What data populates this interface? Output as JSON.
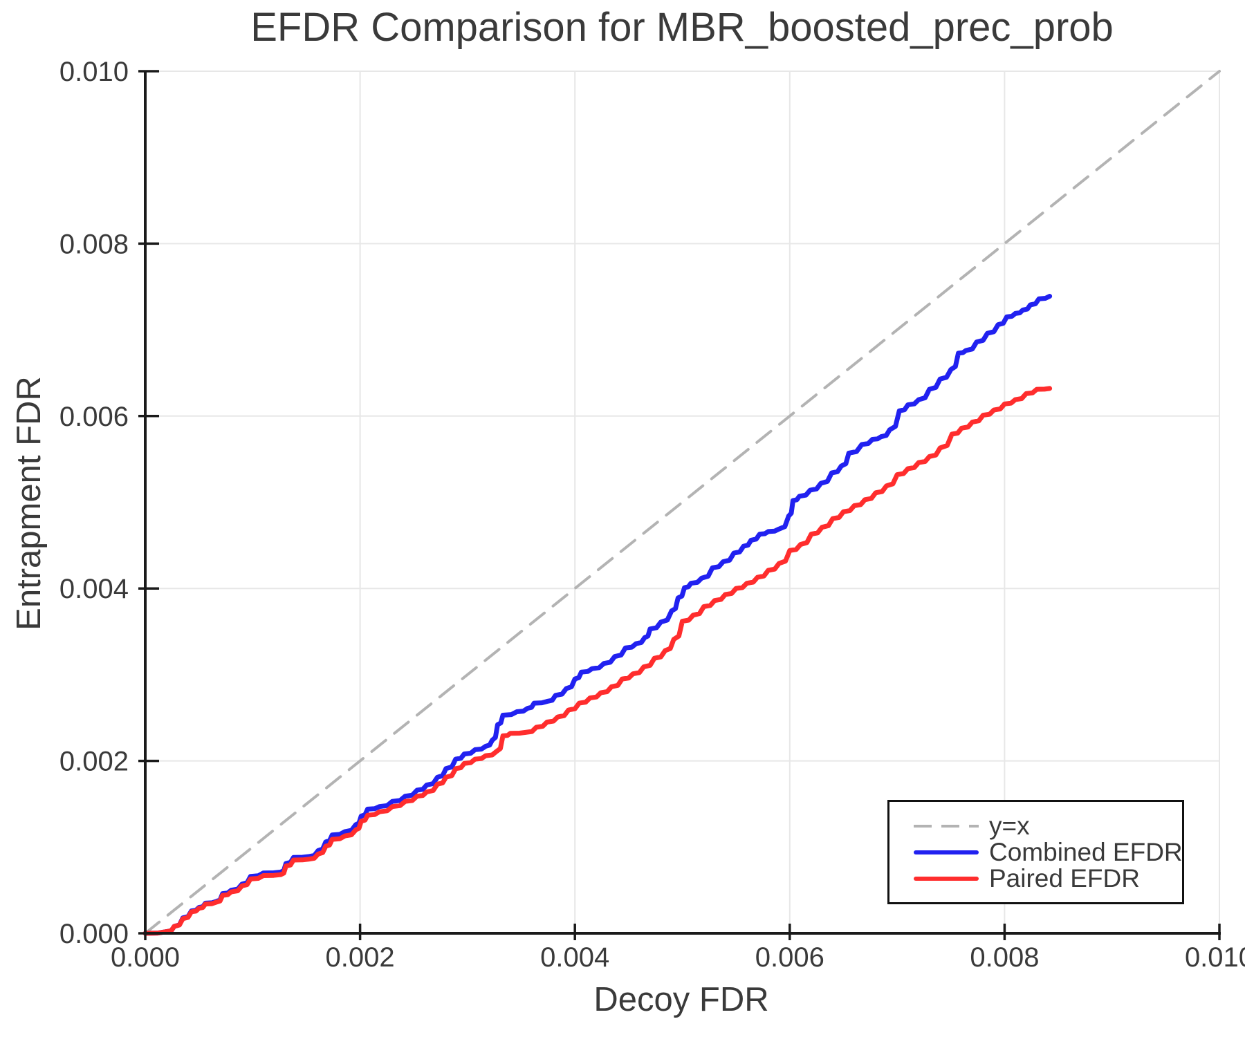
{
  "figure": {
    "title": "EFDR Comparison for MBR_boosted_prec_prob",
    "xlabel": "Decoy FDR",
    "ylabel": "Entrapment FDR"
  },
  "legend": {
    "position": "lower right",
    "items": [
      {
        "label": "y=x",
        "color": "#b3b3b3",
        "style": "dashed"
      },
      {
        "label": "Combined EFDR",
        "color": "#2121f0",
        "style": "solid"
      },
      {
        "label": "Paired EFDR",
        "color": "#ff2d2d",
        "style": "solid"
      }
    ]
  },
  "colors": {
    "identity_line": "#b3b3b3",
    "combined_efdr": "#2121f0",
    "paired_efdr": "#ff2d2d",
    "grid": "#e7e7e7",
    "spine": "#1a1a1a",
    "text": "#3a3a3a"
  },
  "chart_data": {
    "type": "line",
    "title": "EFDR Comparison for MBR_boosted_prec_prob",
    "xlabel": "Decoy FDR",
    "ylabel": "Entrapment FDR",
    "xlim": [
      0.0,
      0.01
    ],
    "ylim": [
      0.0,
      0.01
    ],
    "grid": true,
    "legend_position": "lower right",
    "x_ticks": [
      0.0,
      0.002,
      0.004,
      0.006,
      0.008,
      0.01
    ],
    "y_ticks": [
      0.0,
      0.002,
      0.004,
      0.006,
      0.008,
      0.01
    ],
    "x_tick_labels": [
      "0.000",
      "0.002",
      "0.004",
      "0.006",
      "0.008",
      "0.010"
    ],
    "y_tick_labels": [
      "0.000",
      "0.002",
      "0.004",
      "0.006",
      "0.008",
      "0.010"
    ],
    "series": [
      {
        "name": "y=x",
        "color": "#b3b3b3",
        "style": "dashed",
        "step": false,
        "points": [
          [
            0.0,
            0.0
          ],
          [
            0.01,
            0.01
          ]
        ]
      },
      {
        "name": "Combined EFDR",
        "color": "#2121f0",
        "style": "solid",
        "step": true,
        "points": [
          [
            0.0,
            0.0
          ],
          [
            0.0002,
            2e-05
          ],
          [
            0.00027,
            8e-05
          ],
          [
            0.00035,
            0.00018
          ],
          [
            0.00043,
            0.00026
          ],
          [
            0.0005,
            0.0003
          ],
          [
            0.00056,
            0.00035
          ],
          [
            0.00066,
            0.00037
          ],
          [
            0.00072,
            0.00046
          ],
          [
            0.0008,
            0.0005
          ],
          [
            0.0009,
            0.00057
          ],
          [
            0.00098,
            0.00066
          ],
          [
            0.0011,
            0.0007
          ],
          [
            0.00126,
            0.00071
          ],
          [
            0.00131,
            0.00081
          ],
          [
            0.00138,
            0.00088
          ],
          [
            0.00152,
            0.00089
          ],
          [
            0.00161,
            0.00096
          ],
          [
            0.00168,
            0.00106
          ],
          [
            0.00174,
            0.00114
          ],
          [
            0.00186,
            0.00118
          ],
          [
            0.00196,
            0.00126
          ],
          [
            0.00201,
            0.00136
          ],
          [
            0.00207,
            0.00144
          ],
          [
            0.00218,
            0.00147
          ],
          [
            0.0023,
            0.00153
          ],
          [
            0.00242,
            0.00159
          ],
          [
            0.00253,
            0.00166
          ],
          [
            0.00262,
            0.00172
          ],
          [
            0.00272,
            0.00181
          ],
          [
            0.0028,
            0.00191
          ],
          [
            0.00289,
            0.00202
          ],
          [
            0.00297,
            0.00208
          ],
          [
            0.00307,
            0.00213
          ],
          [
            0.00317,
            0.00217
          ],
          [
            0.00323,
            0.00224
          ],
          [
            0.00328,
            0.00242
          ],
          [
            0.00333,
            0.00253
          ],
          [
            0.00346,
            0.00257
          ],
          [
            0.00356,
            0.00261
          ],
          [
            0.00362,
            0.00267
          ],
          [
            0.00374,
            0.00269
          ],
          [
            0.00382,
            0.00276
          ],
          [
            0.00392,
            0.00284
          ],
          [
            0.004,
            0.00295
          ],
          [
            0.00406,
            0.00303
          ],
          [
            0.00416,
            0.00307
          ],
          [
            0.00427,
            0.00313
          ],
          [
            0.00437,
            0.00321
          ],
          [
            0.00447,
            0.00331
          ],
          [
            0.00457,
            0.00336
          ],
          [
            0.00465,
            0.00343
          ],
          [
            0.0047,
            0.00353
          ],
          [
            0.0048,
            0.00361
          ],
          [
            0.0049,
            0.00374
          ],
          [
            0.00496,
            0.00389
          ],
          [
            0.00502,
            0.00401
          ],
          [
            0.00508,
            0.00406
          ],
          [
            0.00518,
            0.00412
          ],
          [
            0.00528,
            0.00424
          ],
          [
            0.00538,
            0.00431
          ],
          [
            0.00548,
            0.00441
          ],
          [
            0.00557,
            0.00449
          ],
          [
            0.00564,
            0.00456
          ],
          [
            0.00572,
            0.00463
          ],
          [
            0.0058,
            0.00466
          ],
          [
            0.0059,
            0.00469
          ],
          [
            0.00599,
            0.00484
          ],
          [
            0.00603,
            0.00502
          ],
          [
            0.00609,
            0.00507
          ],
          [
            0.00619,
            0.00514
          ],
          [
            0.00629,
            0.00522
          ],
          [
            0.00639,
            0.00534
          ],
          [
            0.00648,
            0.00542
          ],
          [
            0.00655,
            0.00557
          ],
          [
            0.00667,
            0.00567
          ],
          [
            0.00677,
            0.00573
          ],
          [
            0.00685,
            0.00576
          ],
          [
            0.00693,
            0.00584
          ],
          [
            0.00702,
            0.00606
          ],
          [
            0.0071,
            0.00613
          ],
          [
            0.0072,
            0.00619
          ],
          [
            0.0073,
            0.00631
          ],
          [
            0.0074,
            0.00643
          ],
          [
            0.0075,
            0.00654
          ],
          [
            0.00757,
            0.00673
          ],
          [
            0.00764,
            0.00676
          ],
          [
            0.00774,
            0.00686
          ],
          [
            0.00784,
            0.00696
          ],
          [
            0.00794,
            0.00706
          ],
          [
            0.00802,
            0.00715
          ],
          [
            0.0081,
            0.00719
          ],
          [
            0.00817,
            0.00723
          ],
          [
            0.00824,
            0.00729
          ],
          [
            0.00832,
            0.00736
          ],
          [
            0.00842,
            0.00739
          ]
        ]
      },
      {
        "name": "Paired EFDR",
        "color": "#ff2d2d",
        "style": "solid",
        "step": true,
        "points": [
          [
            0.0,
            0.0
          ],
          [
            0.0002,
            2e-05
          ],
          [
            0.00027,
            8e-05
          ],
          [
            0.00035,
            0.00017
          ],
          [
            0.00043,
            0.00025
          ],
          [
            0.0005,
            0.00029
          ],
          [
            0.00056,
            0.00034
          ],
          [
            0.00066,
            0.00036
          ],
          [
            0.00072,
            0.00044
          ],
          [
            0.0008,
            0.00048
          ],
          [
            0.0009,
            0.00055
          ],
          [
            0.00098,
            0.00063
          ],
          [
            0.0011,
            0.00067
          ],
          [
            0.00126,
            0.00068
          ],
          [
            0.00131,
            0.00078
          ],
          [
            0.00138,
            0.00085
          ],
          [
            0.00152,
            0.00086
          ],
          [
            0.00161,
            0.00092
          ],
          [
            0.00168,
            0.00101
          ],
          [
            0.00174,
            0.00109
          ],
          [
            0.00186,
            0.00113
          ],
          [
            0.00196,
            0.0012
          ],
          [
            0.00201,
            0.0013
          ],
          [
            0.00207,
            0.00137
          ],
          [
            0.00218,
            0.00141
          ],
          [
            0.0023,
            0.00147
          ],
          [
            0.00242,
            0.00153
          ],
          [
            0.00253,
            0.00159
          ],
          [
            0.00262,
            0.00164
          ],
          [
            0.00272,
            0.00173
          ],
          [
            0.0028,
            0.00181
          ],
          [
            0.00289,
            0.00191
          ],
          [
            0.00297,
            0.00197
          ],
          [
            0.00307,
            0.00202
          ],
          [
            0.00317,
            0.00206
          ],
          [
            0.00327,
            0.00211
          ],
          [
            0.00333,
            0.00229
          ],
          [
            0.0034,
            0.00232
          ],
          [
            0.00354,
            0.00233
          ],
          [
            0.00364,
            0.00239
          ],
          [
            0.00374,
            0.00245
          ],
          [
            0.00384,
            0.00251
          ],
          [
            0.00394,
            0.00259
          ],
          [
            0.00404,
            0.00267
          ],
          [
            0.00414,
            0.00273
          ],
          [
            0.00424,
            0.00279
          ],
          [
            0.00434,
            0.00286
          ],
          [
            0.00444,
            0.00295
          ],
          [
            0.00454,
            0.00301
          ],
          [
            0.00464,
            0.00309
          ],
          [
            0.00474,
            0.00319
          ],
          [
            0.00484,
            0.00328
          ],
          [
            0.00492,
            0.00341
          ],
          [
            0.005,
            0.00362
          ],
          [
            0.0051,
            0.00369
          ],
          [
            0.0052,
            0.00379
          ],
          [
            0.0053,
            0.00386
          ],
          [
            0.0054,
            0.00393
          ],
          [
            0.0055,
            0.004
          ],
          [
            0.0056,
            0.00406
          ],
          [
            0.0057,
            0.00413
          ],
          [
            0.0058,
            0.00421
          ],
          [
            0.0059,
            0.00429
          ],
          [
            0.006,
            0.00444
          ],
          [
            0.0061,
            0.00451
          ],
          [
            0.0062,
            0.00463
          ],
          [
            0.0063,
            0.00471
          ],
          [
            0.0064,
            0.00481
          ],
          [
            0.0065,
            0.00489
          ],
          [
            0.0066,
            0.00496
          ],
          [
            0.0067,
            0.00503
          ],
          [
            0.0068,
            0.00511
          ],
          [
            0.0069,
            0.00519
          ],
          [
            0.007,
            0.00532
          ],
          [
            0.0071,
            0.00539
          ],
          [
            0.0072,
            0.00546
          ],
          [
            0.0073,
            0.00553
          ],
          [
            0.0074,
            0.00563
          ],
          [
            0.00751,
            0.00579
          ],
          [
            0.0076,
            0.00586
          ],
          [
            0.0077,
            0.00593
          ],
          [
            0.0078,
            0.00601
          ],
          [
            0.0079,
            0.00607
          ],
          [
            0.008,
            0.00614
          ],
          [
            0.0081,
            0.00619
          ],
          [
            0.0082,
            0.00626
          ],
          [
            0.0083,
            0.00631
          ],
          [
            0.00842,
            0.00632
          ]
        ]
      }
    ]
  }
}
